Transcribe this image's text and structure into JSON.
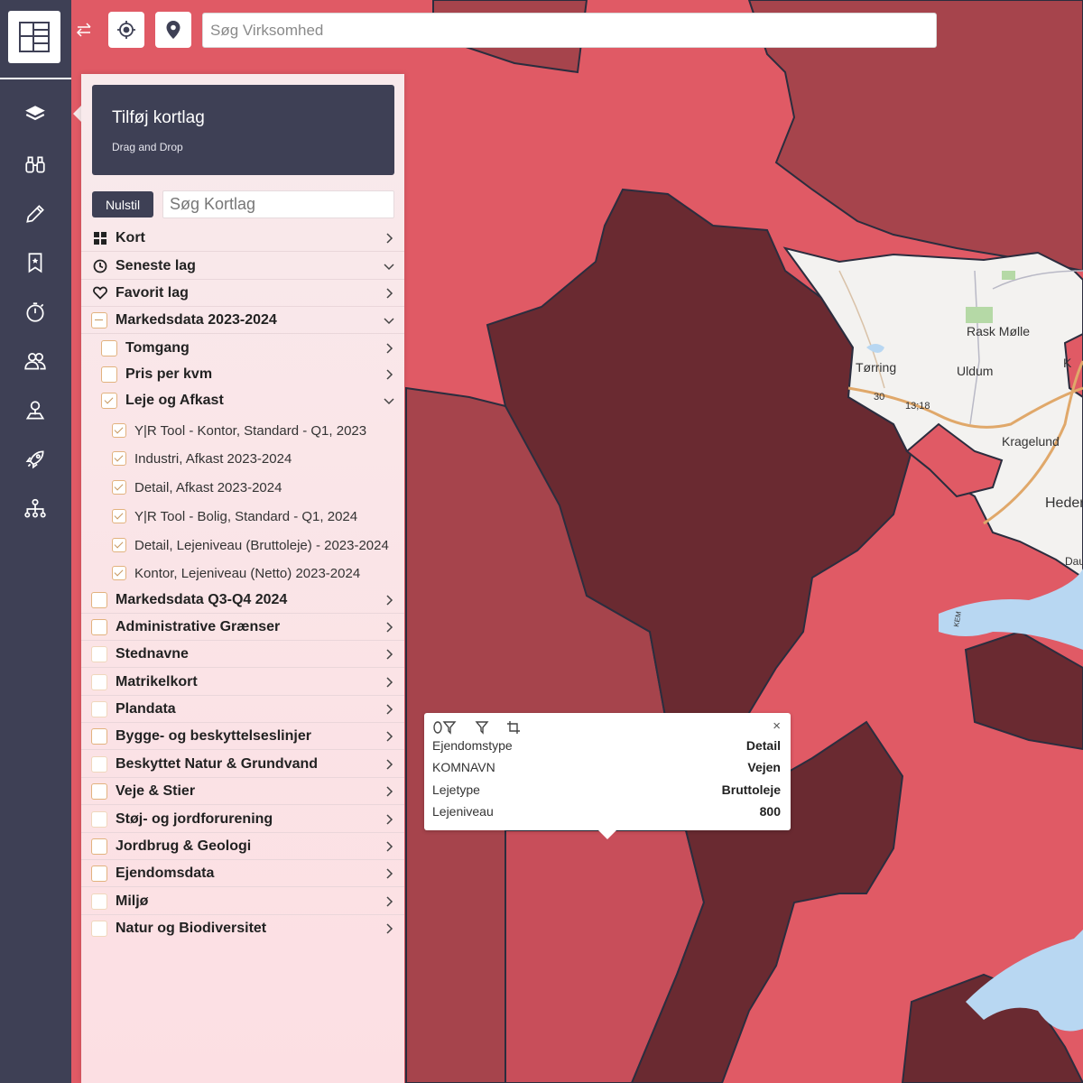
{
  "search": {
    "placeholder": "Søg Virksomhed"
  },
  "panel": {
    "title": "Tilføj kortlag",
    "subtitle": "Drag and Drop",
    "reset_label": "Nulstil",
    "search_placeholder": "Søg Kortlag"
  },
  "layers": {
    "kort": "Kort",
    "seneste": "Seneste lag",
    "favorit": "Favorit lag",
    "markedsdata_2023": "Markedsdata 2023-2024",
    "tomgang": "Tomgang",
    "pris": "Pris per kvm",
    "leje": "Leje og Afkast",
    "leaves": [
      "Y|R Tool - Kontor, Standard - Q1, 2023",
      "Industri, Afkast 2023-2024",
      "Detail, Afkast 2023-2024",
      "Y|R Tool - Bolig, Standard - Q1, 2024",
      "Detail, Lejeniveau (Bruttoleje) - 2023-2024",
      "Kontor, Lejeniveau (Netto) 2023-2024"
    ],
    "groups": [
      "Markedsdata Q3-Q4 2024",
      "Administrative Grænser",
      "Stednavne",
      "Matrikelkort",
      "Plandata",
      "Bygge- og beskyttelseslinjer",
      "Beskyttet Natur & Grundvand",
      "Veje & Stier",
      "Støj- og jordforurening",
      "Jordbrug & Geologi",
      "Ejendomsdata",
      "Miljø",
      "Natur og Biodiversitet"
    ]
  },
  "popup": {
    "rows": [
      {
        "key": "Ejendomstype",
        "value": "Detail"
      },
      {
        "key": "KOMNAVN",
        "value": "Vejen"
      },
      {
        "key": "Lejetype",
        "value": "Bruttoleje"
      },
      {
        "key": "Lejeniveau",
        "value": "800"
      }
    ]
  },
  "map": {
    "places": [
      "Rask Mølle",
      "Tørring",
      "Uldum",
      "Kragelund",
      "Heder",
      "K",
      "Dau"
    ],
    "roads": [
      "13;18",
      "30",
      "KEM"
    ]
  },
  "colors": {
    "rail": "#3e4055",
    "light_red": "#e05a65",
    "mid_red": "#a6444c",
    "dark_red": "#6a2a31",
    "checkbox": "#e2b27e",
    "water": "#b8d7f2"
  }
}
